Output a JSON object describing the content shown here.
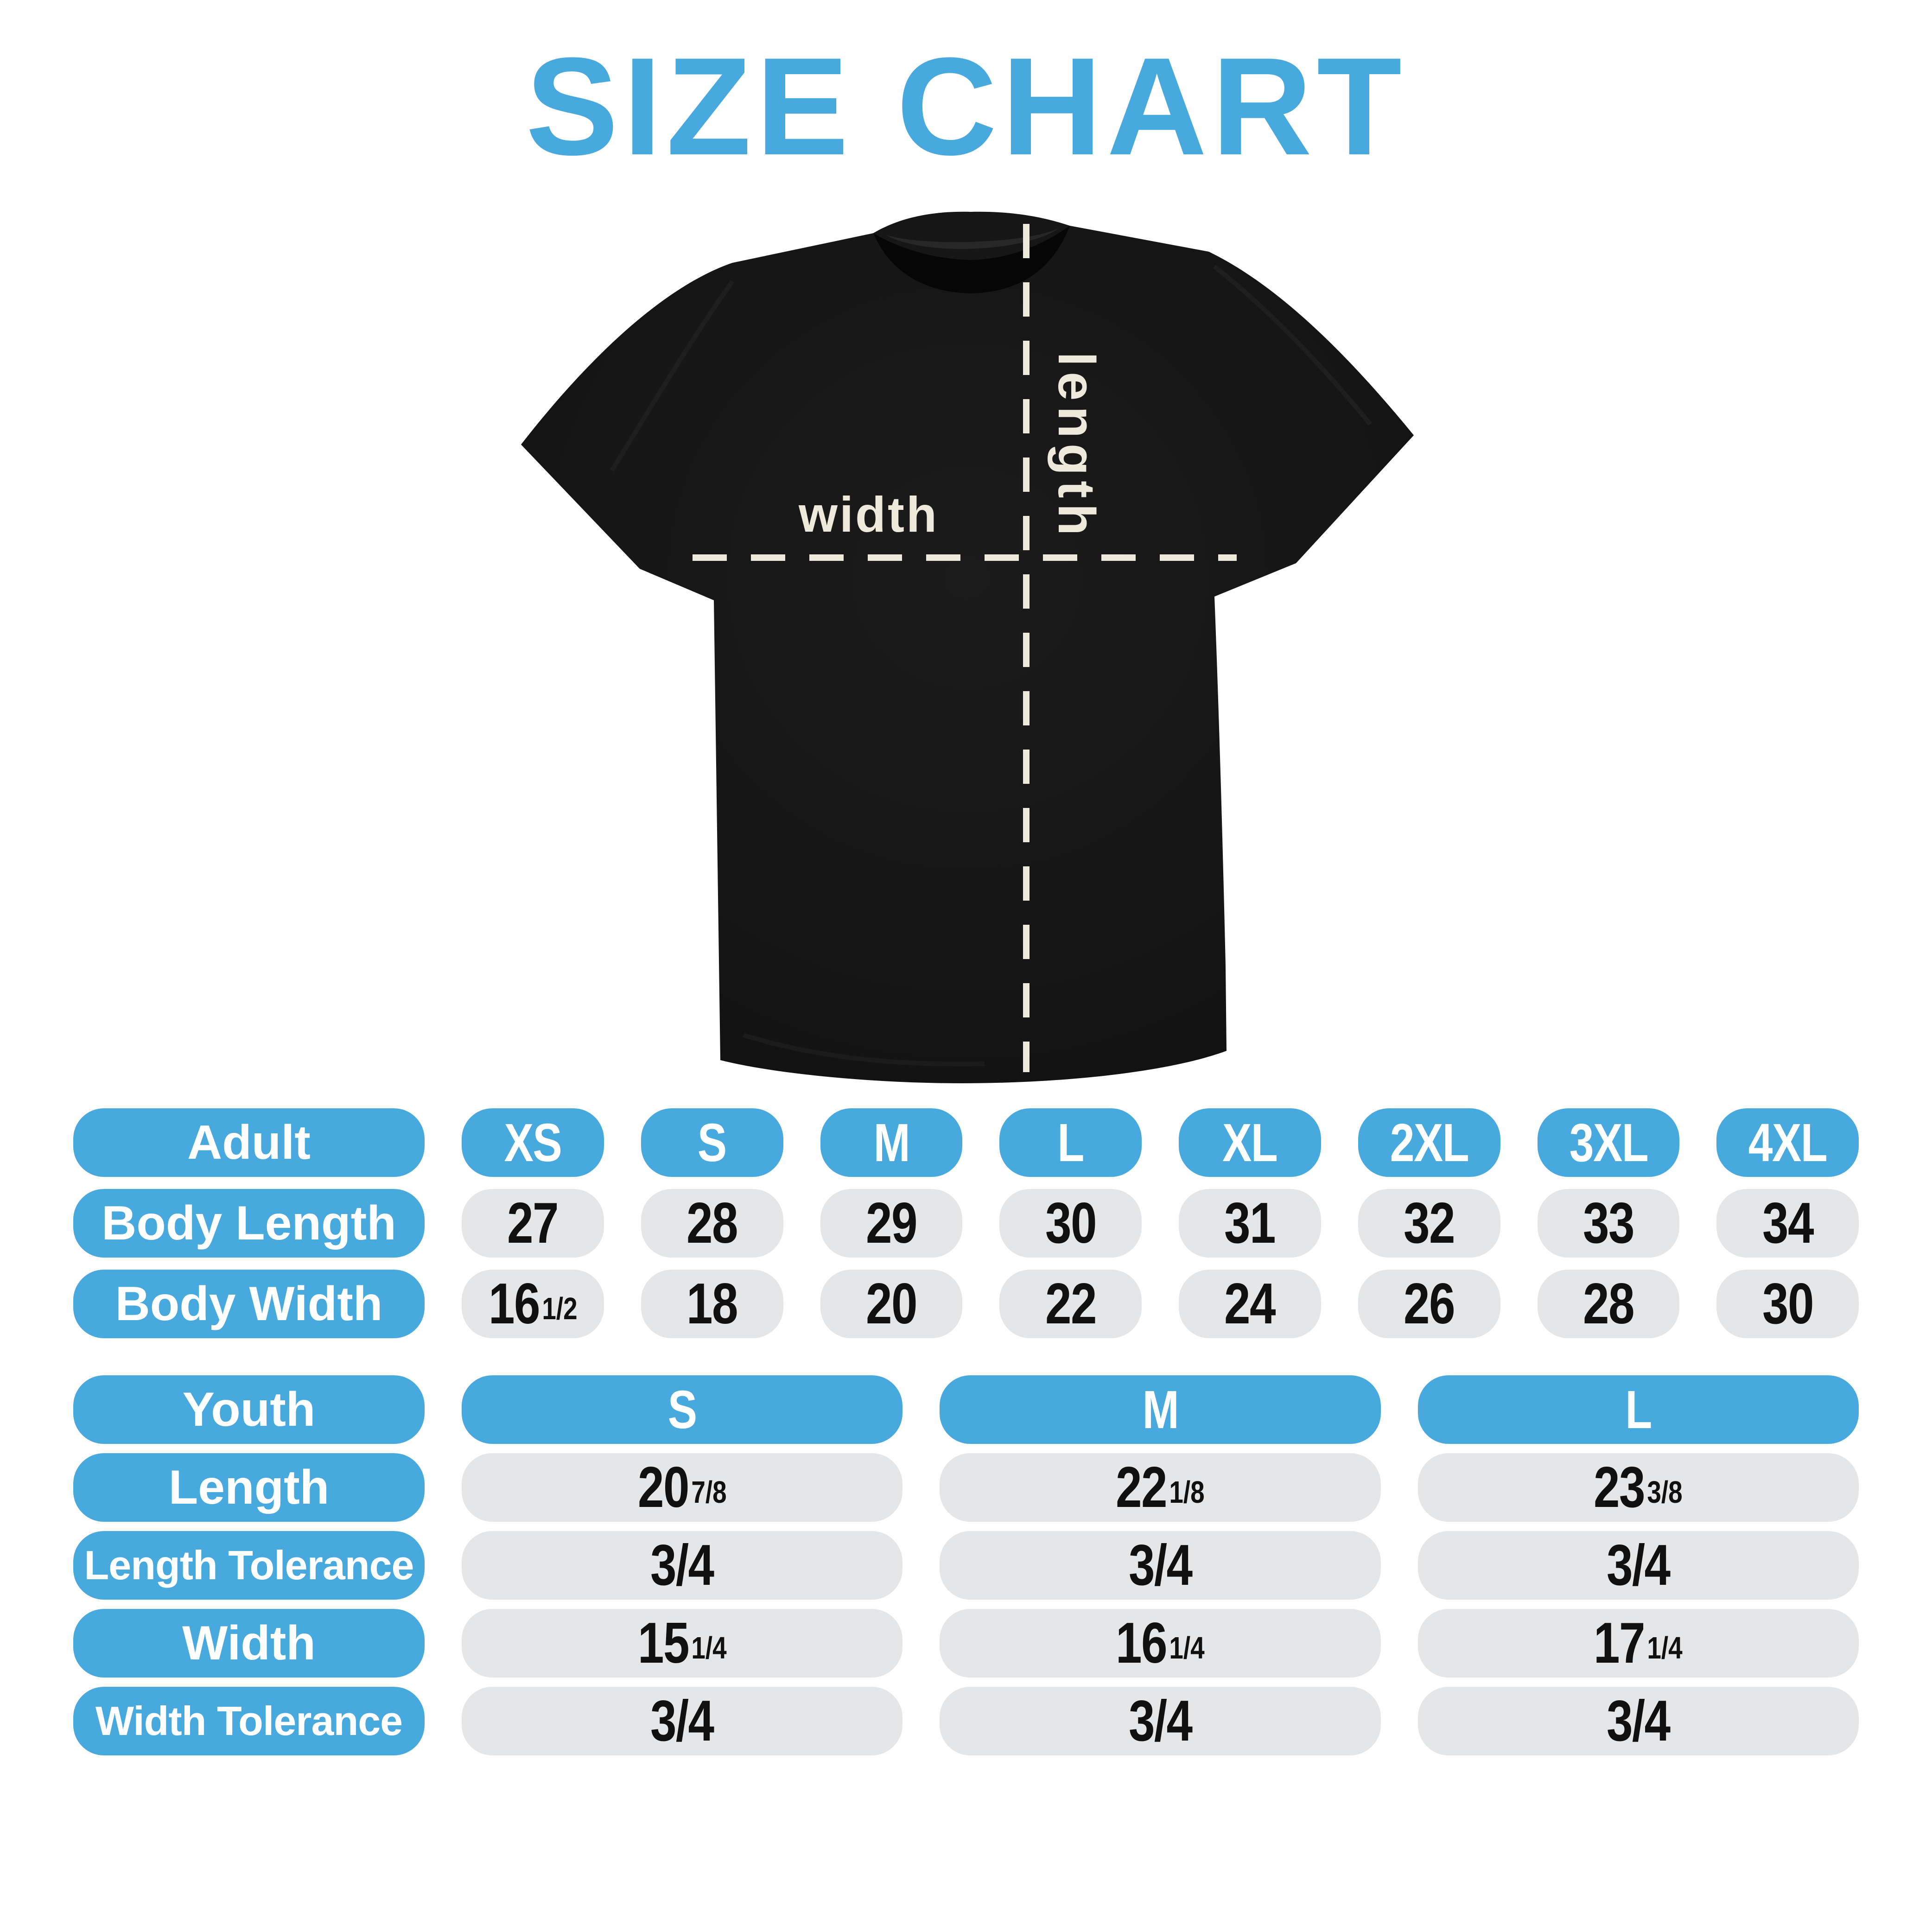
{
  "title": "SIZE CHART",
  "colors": {
    "accent_blue": "#47A9DE",
    "pill_gray": "#E4E6E8",
    "dash_cream": "#EFE9DC",
    "shirt_black": "#131313",
    "number_black": "#101010",
    "background": "#FFFFFF"
  },
  "shirt": {
    "width_label": "width",
    "length_label": "length"
  },
  "adult_table": {
    "header_label": "Adult",
    "sizes": [
      "XS",
      "S",
      "M",
      "L",
      "XL",
      "2XL",
      "3XL",
      "4XL"
    ],
    "rows": [
      {
        "label": "Body Length",
        "long": false,
        "values": [
          {
            "main": "27"
          },
          {
            "main": "28"
          },
          {
            "main": "29"
          },
          {
            "main": "30"
          },
          {
            "main": "31"
          },
          {
            "main": "32"
          },
          {
            "main": "33"
          },
          {
            "main": "34"
          }
        ]
      },
      {
        "label": "Body Width",
        "long": false,
        "values": [
          {
            "main": "16",
            "frac": "1/2"
          },
          {
            "main": "18"
          },
          {
            "main": "20"
          },
          {
            "main": "22"
          },
          {
            "main": "24"
          },
          {
            "main": "26"
          },
          {
            "main": "28"
          },
          {
            "main": "30"
          }
        ]
      }
    ]
  },
  "youth_table": {
    "header_label": "Youth",
    "sizes": [
      "S",
      "M",
      "L"
    ],
    "rows": [
      {
        "label": "Length",
        "long": false,
        "values": [
          {
            "main": "20",
            "frac": "7/8"
          },
          {
            "main": "22",
            "frac": "1/8"
          },
          {
            "main": "23",
            "frac": "3/8"
          }
        ]
      },
      {
        "label": "Length Tolerance",
        "long": true,
        "values": [
          {
            "main": "3/4"
          },
          {
            "main": "3/4"
          },
          {
            "main": "3/4"
          }
        ]
      },
      {
        "label": "Width",
        "long": false,
        "values": [
          {
            "main": "15",
            "frac": "1/4"
          },
          {
            "main": "16",
            "frac": "1/4"
          },
          {
            "main": "17",
            "frac": "1/4"
          }
        ]
      },
      {
        "label": "Width Tolerance",
        "long": true,
        "values": [
          {
            "main": "3/4"
          },
          {
            "main": "3/4"
          },
          {
            "main": "3/4"
          }
        ]
      }
    ]
  }
}
